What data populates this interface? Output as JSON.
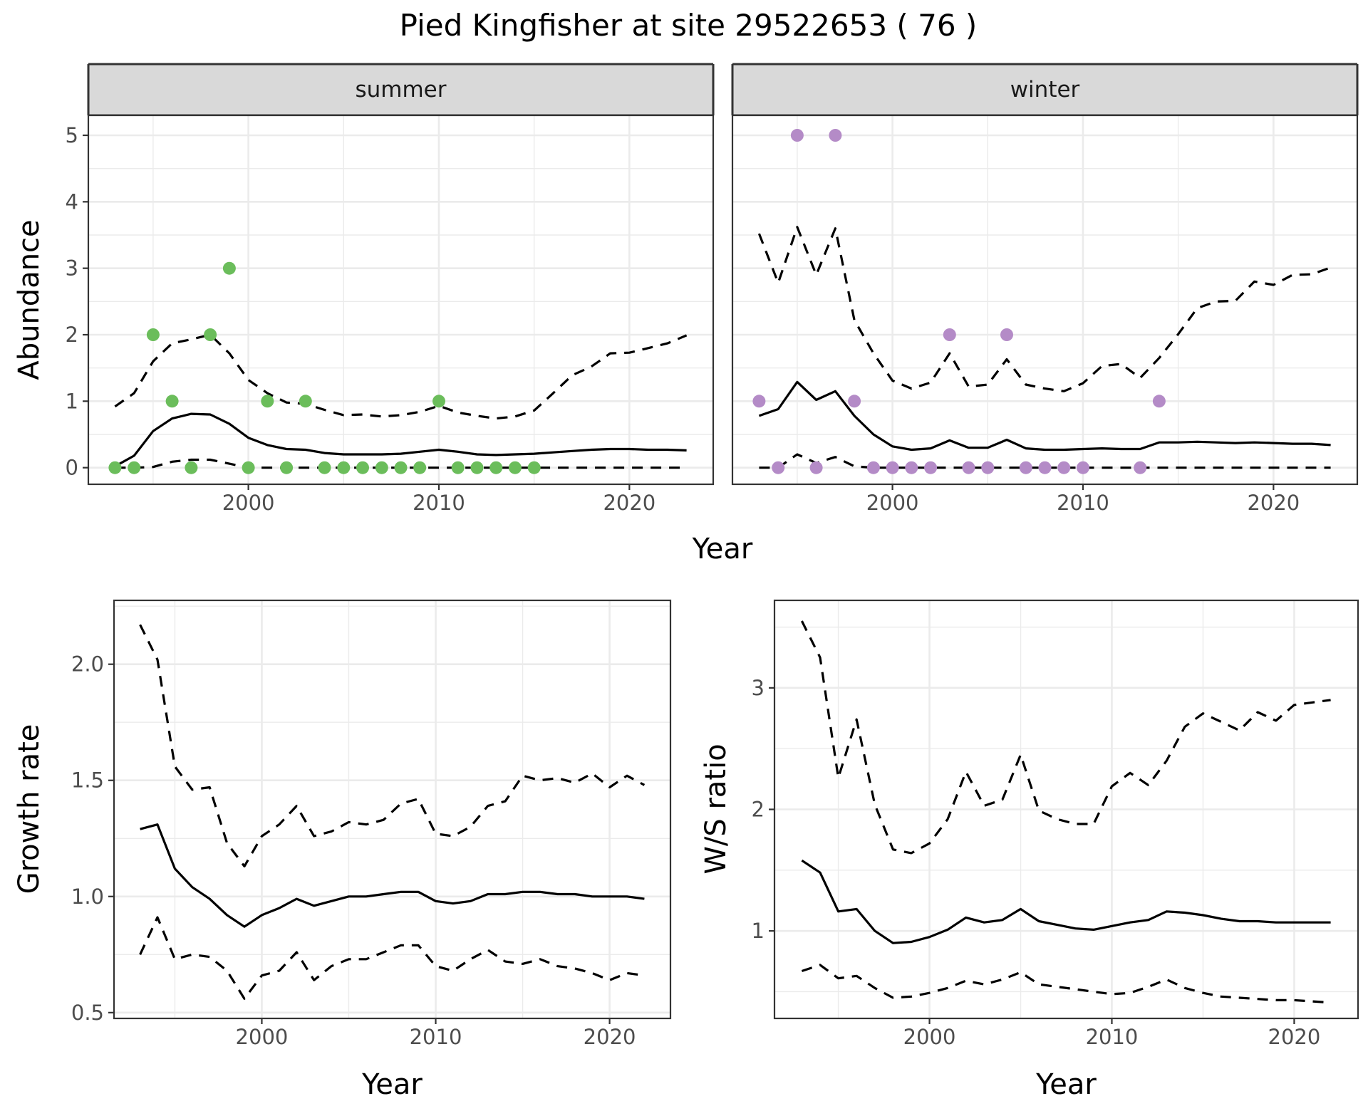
{
  "figure": {
    "title": "Pied Kingfisher at site 29522653 ( 76 )"
  },
  "chart_data": [
    {
      "id": "abundance",
      "type": "line",
      "ylabel": "Abundance",
      "xlabel": "Year",
      "xlim": [
        1991.6,
        2024.4
      ],
      "ylim": [
        -0.25,
        5.3
      ],
      "x_ticks": [
        2000,
        2010,
        2020
      ],
      "y_ticks": [
        0,
        1,
        2,
        3,
        4,
        5
      ],
      "grid": true,
      "legend": "none",
      "facets": [
        {
          "label": "summer",
          "point_color": "#6bbd5b",
          "points": {
            "x": [
              1993,
              1994,
              1995,
              1996,
              1997,
              1998,
              1999,
              2000,
              2001,
              2002,
              2003,
              2004,
              2005,
              2006,
              2007,
              2008,
              2009,
              2010,
              2011,
              2012,
              2013,
              2014,
              2015
            ],
            "y": [
              0,
              0,
              2,
              1,
              0,
              2,
              3,
              0,
              1,
              0,
              1,
              0,
              0,
              0,
              0,
              0,
              0,
              1,
              0,
              0,
              0,
              0,
              0
            ]
          },
          "lines": [
            {
              "style": "solid",
              "x": [
                1993,
                1994,
                1995,
                1996,
                1997,
                1998,
                1999,
                2000,
                2001,
                2002,
                2003,
                2004,
                2005,
                2006,
                2007,
                2008,
                2009,
                2010,
                2011,
                2012,
                2013,
                2014,
                2015,
                2016,
                2017,
                2018,
                2019,
                2020,
                2021,
                2022,
                2023
              ],
              "y": [
                0.02,
                0.18,
                0.55,
                0.74,
                0.81,
                0.8,
                0.66,
                0.45,
                0.34,
                0.28,
                0.27,
                0.22,
                0.2,
                0.2,
                0.2,
                0.21,
                0.24,
                0.27,
                0.24,
                0.2,
                0.19,
                0.2,
                0.21,
                0.23,
                0.25,
                0.27,
                0.28,
                0.28,
                0.27,
                0.27,
                0.26
              ]
            },
            {
              "style": "dashed",
              "x": [
                1993,
                1994,
                1995,
                1996,
                1997,
                1998,
                1999,
                2000,
                2001,
                2002,
                2003,
                2004,
                2005,
                2006,
                2007,
                2008,
                2009,
                2010,
                2011,
                2012,
                2013,
                2014,
                2015,
                2016,
                2017,
                2018,
                2019,
                2020,
                2021,
                2022,
                2023
              ],
              "y": [
                0.92,
                1.12,
                1.6,
                1.87,
                1.93,
                2.0,
                1.72,
                1.32,
                1.12,
                0.98,
                0.96,
                0.87,
                0.79,
                0.8,
                0.77,
                0.79,
                0.84,
                0.93,
                0.83,
                0.78,
                0.74,
                0.77,
                0.86,
                1.12,
                1.39,
                1.52,
                1.72,
                1.73,
                1.8,
                1.87,
                1.99
              ]
            },
            {
              "style": "dashed",
              "x": [
                1993,
                1994,
                1995,
                1996,
                1997,
                1998,
                1999,
                2000,
                2001,
                2002,
                2003,
                2004,
                2005,
                2006,
                2007,
                2008,
                2009,
                2010,
                2011,
                2012,
                2013,
                2014,
                2015,
                2016,
                2017,
                2018,
                2019,
                2020,
                2021,
                2022,
                2023
              ],
              "y": [
                0,
                0,
                0.01,
                0.09,
                0.12,
                0.12,
                0.06,
                0,
                0,
                0,
                0,
                0,
                0,
                0,
                0,
                0,
                0,
                0,
                0,
                0,
                0,
                0,
                0,
                0,
                0,
                0,
                0,
                0,
                0,
                0,
                0
              ]
            }
          ]
        },
        {
          "label": "winter",
          "point_color": "#b48bc7",
          "points": {
            "x": [
              1993,
              1994,
              1995,
              1996,
              1997,
              1998,
              1999,
              2000,
              2001,
              2002,
              2003,
              2004,
              2005,
              2006,
              2007,
              2008,
              2009,
              2010,
              2013,
              2014
            ],
            "y": [
              1,
              0,
              5,
              0,
              5,
              1,
              0,
              0,
              0,
              0,
              2,
              0,
              0,
              2,
              0,
              0,
              0,
              0,
              0,
              1
            ]
          },
          "lines": [
            {
              "style": "solid",
              "x": [
                1993,
                1994,
                1995,
                1996,
                1997,
                1998,
                1999,
                2000,
                2001,
                2002,
                2003,
                2004,
                2005,
                2006,
                2007,
                2008,
                2009,
                2010,
                2011,
                2012,
                2013,
                2014,
                2015,
                2016,
                2017,
                2018,
                2019,
                2020,
                2021,
                2022,
                2023
              ],
              "y": [
                0.78,
                0.88,
                1.29,
                1.02,
                1.15,
                0.78,
                0.5,
                0.32,
                0.27,
                0.29,
                0.41,
                0.3,
                0.3,
                0.42,
                0.29,
                0.27,
                0.27,
                0.28,
                0.29,
                0.28,
                0.28,
                0.38,
                0.38,
                0.39,
                0.38,
                0.37,
                0.38,
                0.37,
                0.36,
                0.36,
                0.34
              ]
            },
            {
              "style": "dashed",
              "x": [
                1993,
                1994,
                1995,
                1996,
                1997,
                1998,
                1999,
                2000,
                2001,
                2002,
                2003,
                2004,
                2005,
                2006,
                2007,
                2008,
                2009,
                2010,
                2011,
                2012,
                2013,
                2014,
                2015,
                2016,
                2017,
                2018,
                2019,
                2020,
                2021,
                2022,
                2023
              ],
              "y": [
                3.52,
                2.78,
                3.62,
                2.9,
                3.6,
                2.22,
                1.72,
                1.31,
                1.19,
                1.28,
                1.72,
                1.22,
                1.25,
                1.63,
                1.25,
                1.19,
                1.15,
                1.27,
                1.53,
                1.56,
                1.35,
                1.65,
                2.01,
                2.4,
                2.5,
                2.51,
                2.8,
                2.75,
                2.9,
                2.91,
                3.01
              ]
            },
            {
              "style": "dashed",
              "x": [
                1993,
                1994,
                1995,
                1996,
                1997,
                1998,
                1999,
                2000,
                2001,
                2002,
                2003,
                2004,
                2005,
                2006,
                2007,
                2008,
                2009,
                2010,
                2011,
                2012,
                2013,
                2014,
                2015,
                2016,
                2017,
                2018,
                2019,
                2020,
                2021,
                2022,
                2023
              ],
              "y": [
                0,
                0,
                0.2,
                0.07,
                0.16,
                0.02,
                0,
                0,
                0,
                0,
                0,
                0,
                0,
                0,
                0,
                0,
                0,
                0,
                0,
                0,
                0,
                0,
                0,
                0,
                0,
                0,
                0,
                0,
                0,
                0,
                0
              ]
            }
          ]
        }
      ]
    },
    {
      "id": "growth",
      "type": "line",
      "ylabel": "Growth rate",
      "xlabel": "Year",
      "xlim": [
        1991.5,
        2023.5
      ],
      "ylim": [
        0.475,
        2.275
      ],
      "x_ticks": [
        2000,
        2010,
        2020
      ],
      "y_ticks": [
        0.5,
        1.0,
        1.5,
        2.0
      ],
      "y_tick_labels": [
        "0.5",
        "1.0",
        "1.5",
        "2.0"
      ],
      "grid": true,
      "legend": "none",
      "lines": [
        {
          "style": "solid",
          "x": [
            1993,
            1994,
            1995,
            1996,
            1997,
            1998,
            1999,
            2000,
            2001,
            2002,
            2003,
            2004,
            2005,
            2006,
            2007,
            2008,
            2009,
            2010,
            2011,
            2012,
            2013,
            2014,
            2015,
            2016,
            2017,
            2018,
            2019,
            2020,
            2021,
            2022
          ],
          "y": [
            1.29,
            1.31,
            1.12,
            1.04,
            0.99,
            0.92,
            0.87,
            0.92,
            0.95,
            0.99,
            0.96,
            0.98,
            1.0,
            1.0,
            1.01,
            1.02,
            1.02,
            0.98,
            0.97,
            0.98,
            1.01,
            1.01,
            1.02,
            1.02,
            1.01,
            1.01,
            1.0,
            1.0,
            1.0,
            0.99
          ]
        },
        {
          "style": "dashed",
          "x": [
            1993,
            1994,
            1995,
            1996,
            1997,
            1998,
            1999,
            2000,
            2001,
            2002,
            2003,
            2004,
            2005,
            2006,
            2007,
            2008,
            2009,
            2010,
            2011,
            2012,
            2013,
            2014,
            2015,
            2016,
            2017,
            2018,
            2019,
            2020,
            2021,
            2022
          ],
          "y": [
            2.17,
            2.02,
            1.56,
            1.46,
            1.47,
            1.23,
            1.13,
            1.26,
            1.31,
            1.39,
            1.26,
            1.28,
            1.32,
            1.31,
            1.33,
            1.4,
            1.42,
            1.27,
            1.26,
            1.3,
            1.39,
            1.41,
            1.52,
            1.5,
            1.51,
            1.49,
            1.53,
            1.47,
            1.52,
            1.48
          ]
        },
        {
          "style": "dashed",
          "x": [
            1993,
            1994,
            1995,
            1996,
            1997,
            1998,
            1999,
            2000,
            2001,
            2002,
            2003,
            2004,
            2005,
            2006,
            2007,
            2008,
            2009,
            2010,
            2011,
            2012,
            2013,
            2014,
            2015,
            2016,
            2017,
            2018,
            2019,
            2020,
            2021,
            2022
          ],
          "y": [
            0.75,
            0.91,
            0.73,
            0.75,
            0.74,
            0.68,
            0.56,
            0.66,
            0.68,
            0.76,
            0.64,
            0.7,
            0.73,
            0.73,
            0.76,
            0.79,
            0.79,
            0.7,
            0.68,
            0.73,
            0.77,
            0.72,
            0.71,
            0.73,
            0.7,
            0.69,
            0.67,
            0.64,
            0.67,
            0.66
          ]
        }
      ]
    },
    {
      "id": "ratio",
      "type": "line",
      "ylabel": "W/S ratio",
      "xlabel": "Year",
      "xlim": [
        1991.5,
        2023.5
      ],
      "ylim": [
        0.28,
        3.72
      ],
      "x_ticks": [
        2000,
        2010,
        2020
      ],
      "y_ticks": [
        1,
        2,
        3
      ],
      "grid": true,
      "legend": "none",
      "lines": [
        {
          "style": "solid",
          "x": [
            1993,
            1994,
            1995,
            1996,
            1997,
            1998,
            1999,
            2000,
            2001,
            2002,
            2003,
            2004,
            2005,
            2006,
            2007,
            2008,
            2009,
            2010,
            2011,
            2012,
            2013,
            2014,
            2015,
            2016,
            2017,
            2018,
            2019,
            2020,
            2021,
            2022
          ],
          "y": [
            1.58,
            1.48,
            1.16,
            1.18,
            1.0,
            0.9,
            0.91,
            0.95,
            1.01,
            1.11,
            1.07,
            1.09,
            1.18,
            1.08,
            1.05,
            1.02,
            1.01,
            1.04,
            1.07,
            1.09,
            1.16,
            1.15,
            1.13,
            1.1,
            1.08,
            1.08,
            1.07,
            1.07,
            1.07,
            1.07
          ]
        },
        {
          "style": "dashed",
          "x": [
            1993,
            1994,
            1995,
            1996,
            1997,
            1998,
            1999,
            2000,
            2001,
            2002,
            2003,
            2004,
            2005,
            2006,
            2007,
            2008,
            2009,
            2010,
            2011,
            2012,
            2013,
            2014,
            2015,
            2016,
            2017,
            2018,
            2019,
            2020,
            2021,
            2022
          ],
          "y": [
            3.55,
            3.25,
            2.26,
            2.74,
            2.04,
            1.67,
            1.64,
            1.72,
            1.92,
            2.31,
            2.03,
            2.08,
            2.45,
            1.99,
            1.92,
            1.88,
            1.88,
            2.19,
            2.3,
            2.2,
            2.4,
            2.68,
            2.79,
            2.72,
            2.65,
            2.8,
            2.73,
            2.86,
            2.88,
            2.9
          ]
        },
        {
          "style": "dashed",
          "x": [
            1993,
            1994,
            1995,
            1996,
            1997,
            1998,
            1999,
            2000,
            2001,
            2002,
            2003,
            2004,
            2005,
            2006,
            2007,
            2008,
            2009,
            2010,
            2011,
            2012,
            2013,
            2014,
            2015,
            2016,
            2017,
            2018,
            2019,
            2020,
            2021,
            2022
          ],
          "y": [
            0.67,
            0.72,
            0.61,
            0.63,
            0.53,
            0.45,
            0.46,
            0.49,
            0.53,
            0.59,
            0.56,
            0.6,
            0.66,
            0.56,
            0.54,
            0.52,
            0.5,
            0.48,
            0.49,
            0.54,
            0.6,
            0.53,
            0.49,
            0.46,
            0.45,
            0.44,
            0.43,
            0.43,
            0.42,
            0.41
          ]
        }
      ]
    }
  ]
}
